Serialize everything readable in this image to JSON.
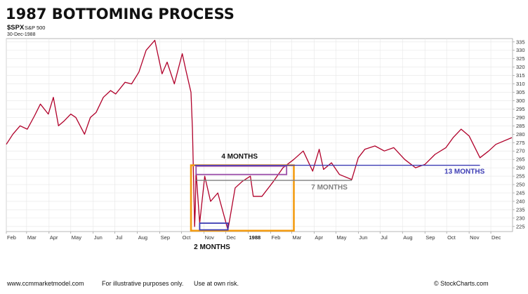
{
  "title": "1987 BOTTOMING PROCESS",
  "ticker": {
    "symbol": "$SPX",
    "name": "S&P 500",
    "date": "30-Dec-1988"
  },
  "footer": {
    "website": "www.ccmmarketmodel.com",
    "disclaimer1": "For illustrative purposes only.",
    "disclaimer2": "Use at own risk.",
    "credit": "© StockCharts.com"
  },
  "colors": {
    "price_line": "#b0002a",
    "orange": "#f39c12",
    "purple": "#9b4fa8",
    "blue": "#3c3cb4",
    "gray": "#7f7f7f"
  },
  "chart_data": {
    "type": "line",
    "title": "1987 BOTTOMING PROCESS",
    "xlabel": "",
    "ylabel": "",
    "ylim": [
      222,
      337
    ],
    "grid": true,
    "x_ticks": [
      "Feb",
      "Mar",
      "Apr",
      "May",
      "Jun",
      "Jul",
      "Aug",
      "Sep",
      "Oct",
      "Nov",
      "Dec",
      "1988",
      "Feb",
      "Mar",
      "Apr",
      "May",
      "Jun",
      "Jul",
      "Aug",
      "Sep",
      "Oct",
      "Nov",
      "Dec"
    ],
    "y_ticks": [
      225,
      230,
      235,
      240,
      245,
      250,
      255,
      260,
      265,
      270,
      275,
      280,
      285,
      290,
      295,
      300,
      305,
      310,
      315,
      320,
      325,
      330,
      335
    ],
    "series": [
      {
        "values": [
          [
            "1987-02-01",
            274
          ],
          [
            "1987-02-10",
            280
          ],
          [
            "1987-02-20",
            285
          ],
          [
            "1987-03-02",
            283
          ],
          [
            "1987-03-12",
            291
          ],
          [
            "1987-03-20",
            298
          ],
          [
            "1987-03-31",
            292
          ],
          [
            "1987-04-07",
            302
          ],
          [
            "1987-04-14",
            285
          ],
          [
            "1987-04-22",
            288
          ],
          [
            "1987-05-01",
            292
          ],
          [
            "1987-05-08",
            290
          ],
          [
            "1987-05-20",
            280
          ],
          [
            "1987-05-28",
            290
          ],
          [
            "1987-06-05",
            293
          ],
          [
            "1987-06-15",
            302
          ],
          [
            "1987-06-25",
            306
          ],
          [
            "1987-07-02",
            304
          ],
          [
            "1987-07-15",
            311
          ],
          [
            "1987-07-24",
            310
          ],
          [
            "1987-08-03",
            317
          ],
          [
            "1987-08-13",
            330
          ],
          [
            "1987-08-25",
            336
          ],
          [
            "1987-09-04",
            316
          ],
          [
            "1987-09-11",
            323
          ],
          [
            "1987-09-21",
            310
          ],
          [
            "1987-10-02",
            328
          ],
          [
            "1987-10-07",
            318
          ],
          [
            "1987-10-14",
            305
          ],
          [
            "1987-10-16",
            283
          ],
          [
            "1987-10-19",
            225
          ],
          [
            "1987-10-20",
            236
          ],
          [
            "1987-10-21",
            258
          ],
          [
            "1987-10-26",
            227
          ],
          [
            "1987-11-02",
            255
          ],
          [
            "1987-11-10",
            240
          ],
          [
            "1987-11-20",
            245
          ],
          [
            "1987-12-04",
            223
          ],
          [
            "1987-12-14",
            248
          ],
          [
            "1987-12-24",
            252
          ],
          [
            "1988-01-04",
            255
          ],
          [
            "1988-01-08",
            243
          ],
          [
            "1988-01-20",
            243
          ],
          [
            "1988-02-05",
            252
          ],
          [
            "1988-02-18",
            260
          ],
          [
            "1988-03-04",
            265
          ],
          [
            "1988-03-17",
            270
          ],
          [
            "1988-03-30",
            258
          ],
          [
            "1988-04-08",
            271
          ],
          [
            "1988-04-14",
            259
          ],
          [
            "1988-04-25",
            263
          ],
          [
            "1988-05-06",
            256
          ],
          [
            "1988-05-23",
            253
          ],
          [
            "1988-06-01",
            266
          ],
          [
            "1988-06-10",
            271
          ],
          [
            "1988-06-24",
            273
          ],
          [
            "1988-07-07",
            270
          ],
          [
            "1988-07-20",
            272
          ],
          [
            "1988-08-04",
            265
          ],
          [
            "1988-08-19",
            260
          ],
          [
            "1988-09-01",
            262
          ],
          [
            "1988-09-15",
            268
          ],
          [
            "1988-09-30",
            272
          ],
          [
            "1988-10-10",
            278
          ],
          [
            "1988-10-21",
            283
          ],
          [
            "1988-11-01",
            279
          ],
          [
            "1988-11-16",
            266
          ],
          [
            "1988-11-28",
            270
          ],
          [
            "1988-12-08",
            274
          ],
          [
            "1988-12-30",
            278
          ]
        ]
      }
    ],
    "annotations": [
      {
        "text": "4 MONTHS",
        "color": "#111111"
      },
      {
        "text": "2 MONTHS",
        "color": "#111111"
      },
      {
        "text": "7 MONTHS",
        "color": "#7f7f7f"
      },
      {
        "text": "13 MONTHS",
        "color": "#3c3cb4"
      }
    ]
  }
}
